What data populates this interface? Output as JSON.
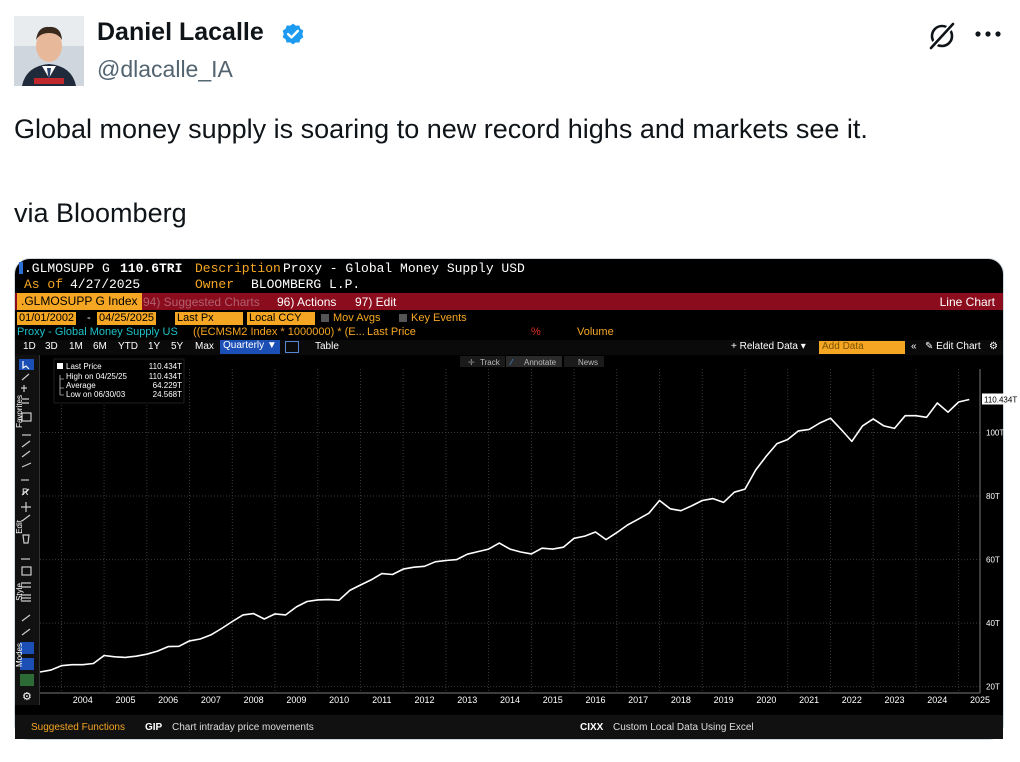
{
  "tweet": {
    "author_name": "Daniel Lacalle",
    "author_handle": "@dlacalle_IA",
    "text_line1": "Global money supply is soaring to new record highs and markets see it.",
    "text_line2": "via Bloomberg",
    "verified_color": "#1d9bf0"
  },
  "bloomberg": {
    "ticker": ".GLMOSUPP G",
    "last_value": "110.6TRI",
    "description_label": "Description",
    "description": "Proxy - Global Money Supply USD",
    "asof_label": "As of",
    "asof": "4/27/2025",
    "owner_label": "Owner",
    "owner": "BLOOMBERG L.P.",
    "index_tab": ".GLMOSUPP G Index",
    "suggested_charts": "94) Suggested Charts",
    "actions": "96) Actions",
    "edit": "97) Edit",
    "line_chart": "Line Chart",
    "start_date": "01/01/2002",
    "end_date": "04/25/2025",
    "last_px": "Last Px",
    "local_ccy": "Local CCY",
    "mov_avgs": "Mov Avgs",
    "key_events": "Key Events",
    "series_label": "Proxy - Global Money Supply US",
    "formula": "((ECMSM2 Index * 1000000) * (E...",
    "last_price_hdr": "Last Price",
    "pct": "%",
    "volume": "Volume",
    "ranges": [
      "1D",
      "3D",
      "1M",
      "6M",
      "YTD",
      "1Y",
      "5Y",
      "Max"
    ],
    "quarterly": "Quarterly",
    "table": "Table",
    "related_data": "Related Data",
    "add_data": "Add Data",
    "edit_chart": "Edit Chart",
    "track": "Track",
    "annotate": "Annotate",
    "news": "News",
    "legend": {
      "last_price_label": "Last Price",
      "last_price_value": "110.434T",
      "high_label": "High on 04/25/25",
      "high_value": "110.434T",
      "avg_label": "Average",
      "avg_value": "64.229T",
      "low_label": "Low on 06/30/03",
      "low_value": "24.568T"
    },
    "last_tag": "110.434T",
    "side_labels": [
      "Favorites",
      "Edit",
      "Style",
      "Modes"
    ],
    "bottom_left": "Suggested Functions",
    "gip_code": "GIP",
    "gip_desc": "Chart intraday price movements",
    "cixx_code": "CIXX",
    "cixx_desc": "Custom Local Data Using Excel"
  },
  "chart_data": {
    "type": "line",
    "title": "Proxy - Global Money Supply USD",
    "x_ticks": [
      "2004",
      "2005",
      "2006",
      "2007",
      "2008",
      "2009",
      "2010",
      "2011",
      "2012",
      "2013",
      "2014",
      "2015",
      "2016",
      "2017",
      "2018",
      "2019",
      "2020",
      "2021",
      "2022",
      "2023",
      "2024",
      "2025"
    ],
    "y_ticks": [
      "20T",
      "40T",
      "60T",
      "80T",
      "100T"
    ],
    "ylim": [
      18,
      120
    ],
    "xlim": [
      2003.5,
      2025.5
    ],
    "series": [
      {
        "name": "Last Price",
        "x": [
          2003.5,
          2003.75,
          2004.0,
          2004.25,
          2004.5,
          2004.75,
          2005.0,
          2005.25,
          2005.5,
          2005.75,
          2006.0,
          2006.25,
          2006.5,
          2006.75,
          2007.0,
          2007.25,
          2007.5,
          2007.75,
          2008.0,
          2008.25,
          2008.5,
          2008.75,
          2009.0,
          2009.25,
          2009.5,
          2009.75,
          2010.0,
          2010.25,
          2010.5,
          2010.75,
          2011.0,
          2011.25,
          2011.5,
          2011.75,
          2012.0,
          2012.25,
          2012.5,
          2012.75,
          2013.0,
          2013.25,
          2013.5,
          2013.75,
          2014.0,
          2014.25,
          2014.5,
          2014.75,
          2015.0,
          2015.25,
          2015.5,
          2015.75,
          2016.0,
          2016.25,
          2016.5,
          2016.75,
          2017.0,
          2017.25,
          2017.5,
          2017.75,
          2018.0,
          2018.25,
          2018.5,
          2018.75,
          2019.0,
          2019.25,
          2019.5,
          2019.75,
          2020.0,
          2020.25,
          2020.5,
          2020.75,
          2021.0,
          2021.25,
          2021.5,
          2021.75,
          2022.0,
          2022.25,
          2022.5,
          2022.75,
          2023.0,
          2023.25,
          2023.5,
          2023.75,
          2024.0,
          2024.25,
          2024.5,
          2024.75,
          2025.0,
          2025.25
        ],
        "values": [
          24.6,
          25.2,
          26.6,
          26.9,
          26.9,
          27.3,
          29.8,
          29.4,
          29.2,
          29.6,
          30.2,
          31.2,
          32.6,
          32.7,
          34.4,
          35.0,
          36.3,
          38.3,
          40.5,
          42.6,
          43.0,
          41.3,
          42.9,
          42.6,
          45.1,
          46.8,
          47.3,
          47.4,
          47.2,
          50.3,
          52.0,
          53.6,
          55.6,
          55.3,
          57.0,
          57.6,
          57.9,
          59.3,
          59.7,
          60.0,
          61.7,
          62.5,
          63.3,
          65.2,
          63.3,
          62.4,
          61.8,
          63.6,
          63.3,
          63.9,
          66.7,
          67.4,
          68.7,
          66.3,
          68.5,
          70.9,
          72.7,
          74.6,
          78.6,
          76.0,
          75.4,
          76.9,
          78.6,
          79.2,
          78.0,
          81.2,
          82.2,
          88.2,
          92.6,
          96.5,
          97.8,
          100.5,
          101.0,
          103.0,
          104.5,
          101.0,
          97.2,
          102.1,
          104.3,
          102.1,
          101.3,
          105.3,
          105.3,
          104.8,
          109.3,
          106.4,
          109.6,
          110.4
        ]
      }
    ],
    "grid": true,
    "legend": "top-left"
  }
}
